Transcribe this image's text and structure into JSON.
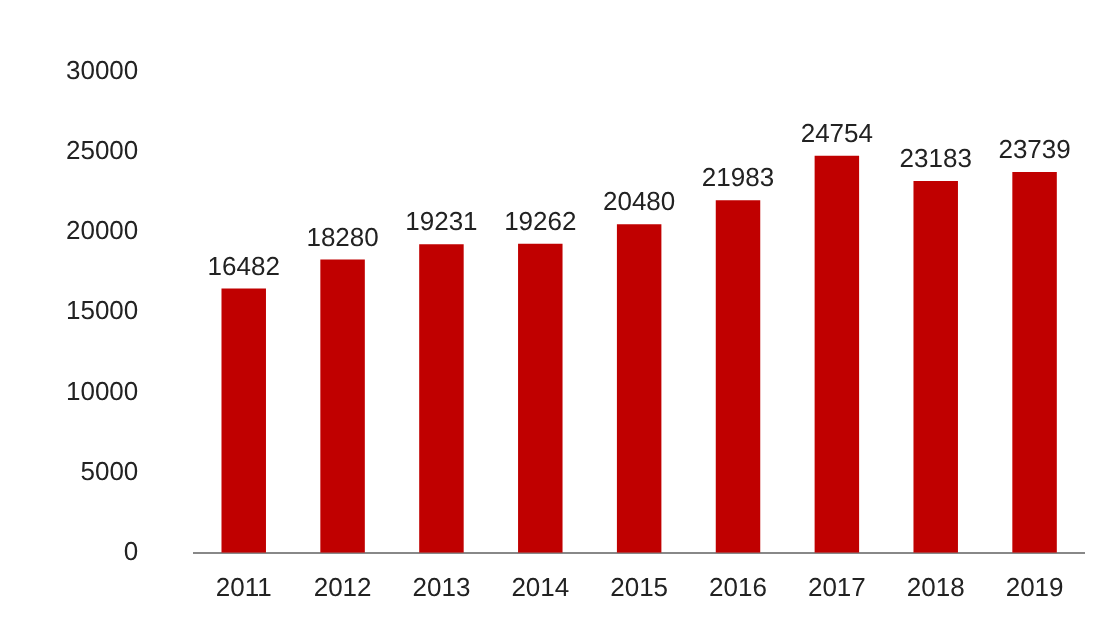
{
  "chart_data": {
    "type": "bar",
    "categories": [
      "2011",
      "2012",
      "2013",
      "2014",
      "2015",
      "2016",
      "2017",
      "2018",
      "2019"
    ],
    "values": [
      16482,
      18280,
      19231,
      19262,
      20480,
      21983,
      24754,
      23183,
      23739
    ],
    "color": "#c00000",
    "ylim": [
      0,
      30000
    ],
    "yticks": [
      0,
      5000,
      10000,
      15000,
      20000,
      25000,
      30000
    ],
    "grid": false,
    "legend": false,
    "data_labels": true
  }
}
